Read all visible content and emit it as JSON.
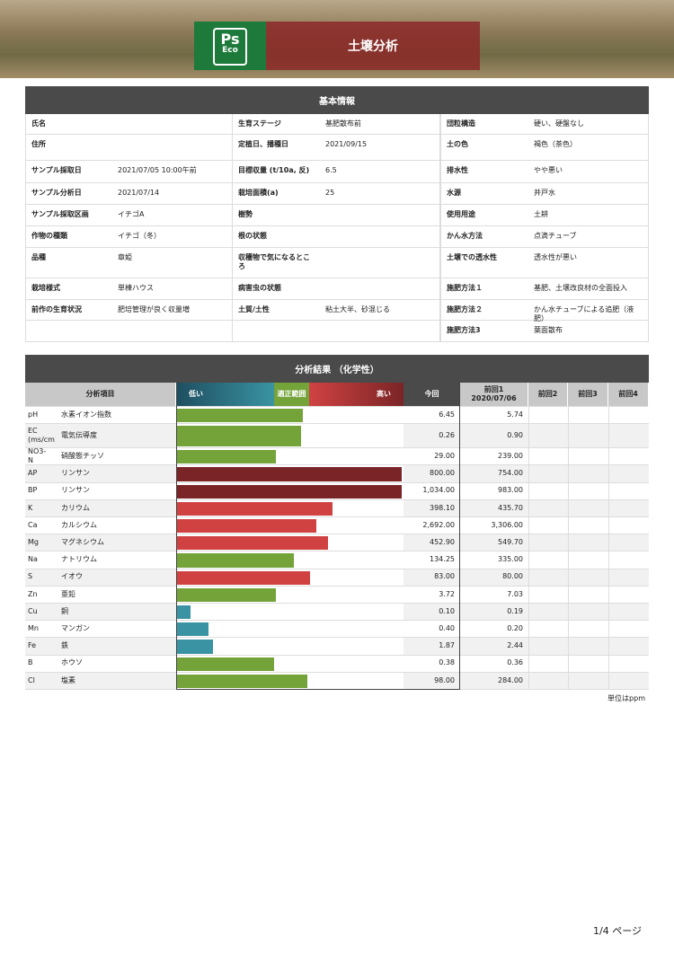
{
  "header": {
    "logo_main": "Ps",
    "logo_sub": "Eco",
    "title": "土壌分析"
  },
  "basic": {
    "title": "基本情報",
    "rows": [
      [
        "氏名",
        null,
        "生育ステージ",
        "基肥散布前",
        "団粒構造",
        "硬い、硬盤なし"
      ],
      [
        "住所",
        null,
        "定植日、播種日",
        "2021/09/15",
        "土の色",
        "褐色（茶色）"
      ],
      [
        "サンプル採取日",
        "2021/07/05 10:00午前",
        "目標収量 (t/10a, 反)",
        "6.5",
        "排水性",
        "やや悪い"
      ],
      [
        "サンプル分析日",
        "2021/07/14",
        "栽培面積(a)",
        "25",
        "水源",
        "井戸水"
      ],
      [
        "サンプル採取区画",
        "イチゴA",
        "樹勢",
        null,
        "使用用途",
        "土耕"
      ],
      [
        "作物の種類",
        "イチゴ（冬）",
        "根の状態",
        null,
        "かん水方法",
        "点滴チューブ"
      ],
      [
        "品種",
        "章姫",
        "収穫物で気になるところ",
        null,
        "土壌での透水性",
        "透水性が悪い"
      ],
      [
        "栽培様式",
        "単棟ハウス",
        "病害虫の状態",
        null,
        "施肥方法１",
        "基肥、土壌改良材の全面投入"
      ],
      [
        "前作の生育状況",
        "肥培管理が良く収量増",
        "土質/土性",
        "粘土大半、砂混じる",
        "施肥方法２",
        "かん水チューブによる追肥（液肥）"
      ],
      [
        null,
        null,
        null,
        null,
        "施肥方法3",
        "葉面散布"
      ]
    ]
  },
  "analysis": {
    "title": "分析結果 （化学性）",
    "columns": {
      "item": "分析項目",
      "low": "低い",
      "ok": "適正範囲",
      "high": "高い",
      "current": "今回",
      "prev1": "前回1",
      "prev1_date": "2020/07/06",
      "prev2": "前回2",
      "prev3": "前回3",
      "prev4": "前回4"
    },
    "rows": [
      {
        "code": "pH",
        "name": "水素イオン指数",
        "level": 56,
        "color": "#74a33a",
        "current": "6.45",
        "prev1": "5.74"
      },
      {
        "code": "EC (ms/cm)",
        "name": "電気伝導度",
        "level": 55,
        "color": "#74a33a",
        "current": "0.26",
        "prev1": "0.90"
      },
      {
        "code": "NO3-N",
        "name": "硝酸態チッソ",
        "level": 44,
        "color": "#74a33a",
        "current": "29.00",
        "prev1": "239.00"
      },
      {
        "code": "AP",
        "name": "リンサン",
        "level": 100,
        "color": "#7a2427",
        "current": "800.00",
        "prev1": "754.00"
      },
      {
        "code": "BP",
        "name": "リンサン",
        "level": 100,
        "color": "#7a2427",
        "current": "1,034.00",
        "prev1": "983.00"
      },
      {
        "code": "K",
        "name": "カリウム",
        "level": 69,
        "color": "#d04242",
        "current": "398.10",
        "prev1": "435.70"
      },
      {
        "code": "Ca",
        "name": "カルシウム",
        "level": 62,
        "color": "#d04242",
        "current": "2,692.00",
        "prev1": "3,306.00"
      },
      {
        "code": "Mg",
        "name": "マグネシウム",
        "level": 67,
        "color": "#d04242",
        "current": "452.90",
        "prev1": "549.70"
      },
      {
        "code": "Na",
        "name": "ナトリウム",
        "level": 52,
        "color": "#74a33a",
        "current": "134.25",
        "prev1": "335.00"
      },
      {
        "code": "S",
        "name": "イオウ",
        "level": 59,
        "color": "#d04242",
        "current": "83.00",
        "prev1": "80.00"
      },
      {
        "code": "Zn",
        "name": "亜鉛",
        "level": 44,
        "color": "#74a33a",
        "current": "3.72",
        "prev1": "7.03"
      },
      {
        "code": "Cu",
        "name": "銅",
        "level": 6,
        "color": "#3a93a2",
        "current": "0.10",
        "prev1": "0.19"
      },
      {
        "code": "Mn",
        "name": "マンガン",
        "level": 14,
        "color": "#3a93a2",
        "current": "0.40",
        "prev1": "0.20"
      },
      {
        "code": "Fe",
        "name": "鉄",
        "level": 16,
        "color": "#3a93a2",
        "current": "1.87",
        "prev1": "2.44"
      },
      {
        "code": "B",
        "name": "ホウソ",
        "level": 43,
        "color": "#74a33a",
        "current": "0.38",
        "prev1": "0.36"
      },
      {
        "code": "Cl",
        "name": "塩素",
        "level": 58,
        "color": "#74a33a",
        "current": "98.00",
        "prev1": "284.00"
      }
    ],
    "unit": "単位はppm"
  },
  "footer": {
    "page": "1/4 ページ"
  }
}
